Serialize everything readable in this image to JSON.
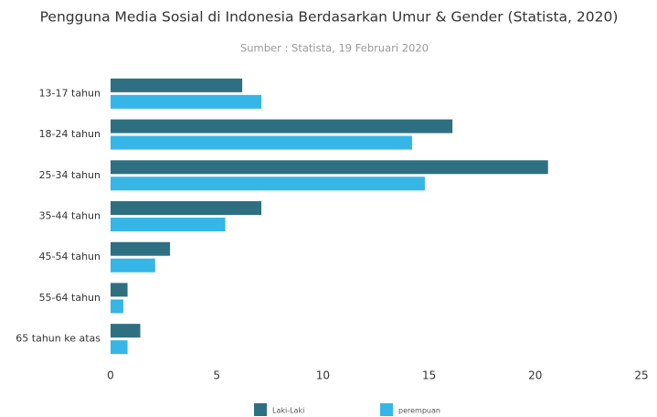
{
  "chart_data": {
    "type": "barh",
    "title": "Pengguna Media Sosial di Indonesia Berdasarkan Umur & Gender (Statista, 2020)",
    "subtitle": "Sumber : Statista, 19 Februari 2020",
    "categories": [
      "13-17 tahun",
      "18-24 tahun",
      "25-34 tahun",
      "35-44 tahun",
      "45-54 tahun",
      "55-64 tahun",
      "65 tahun ke atas"
    ],
    "series": [
      {
        "name": "Laki-Laki",
        "color": "#2f6f82",
        "values": [
          6.2,
          16.1,
          20.6,
          7.1,
          2.8,
          0.8,
          1.4
        ]
      },
      {
        "name": "perempuan",
        "color": "#35b6e6",
        "values": [
          7.1,
          14.2,
          14.8,
          5.4,
          2.1,
          0.6,
          0.8
        ]
      }
    ],
    "xlim": [
      0,
      25
    ],
    "xticks": [
      0,
      5,
      10,
      15,
      20,
      25
    ],
    "grid": false
  }
}
